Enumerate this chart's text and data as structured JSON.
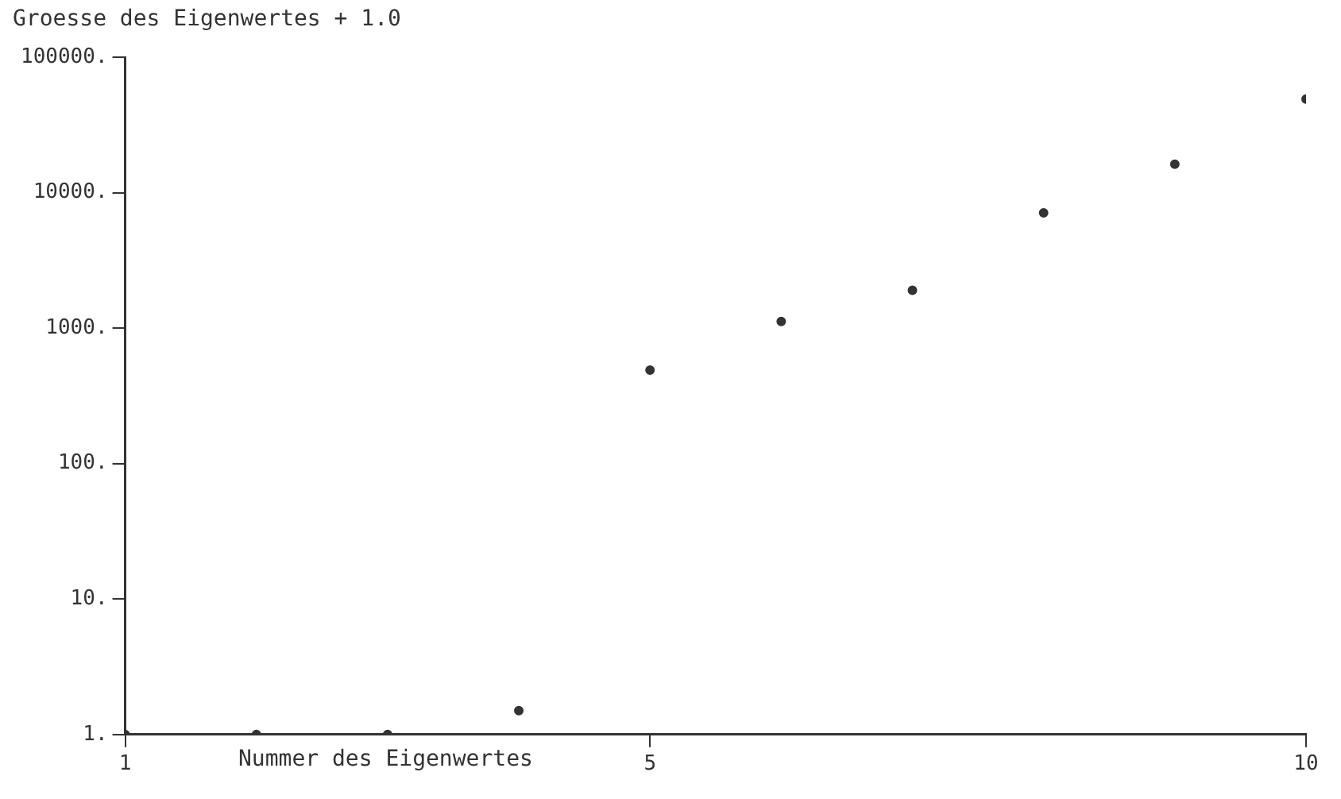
{
  "chart_data": {
    "type": "scatter",
    "ylabel": "Groesse des Eigenwertes + 1.0",
    "xlabel": "Nummer des Eigenwertes",
    "x": [
      1,
      2,
      3,
      4,
      5,
      6,
      7,
      8,
      9,
      10
    ],
    "values": [
      1,
      1,
      1,
      1.5,
      490,
      1120,
      1900,
      7100,
      16200,
      49000
    ],
    "color": "#333333",
    "marker": "circle",
    "log": "y",
    "grid": false,
    "legend": false,
    "xlim": [
      1,
      10
    ],
    "xticks": [
      1,
      5,
      10
    ],
    "ylim": [
      1,
      100000
    ],
    "yticks": [
      {
        "value": 1,
        "label": "1."
      },
      {
        "value": 10,
        "label": "10."
      },
      {
        "value": 100,
        "label": "100."
      },
      {
        "value": 1000,
        "label": "1000."
      },
      {
        "value": 10000,
        "label": "10000."
      },
      {
        "value": 100000,
        "label": "100000."
      }
    ]
  }
}
